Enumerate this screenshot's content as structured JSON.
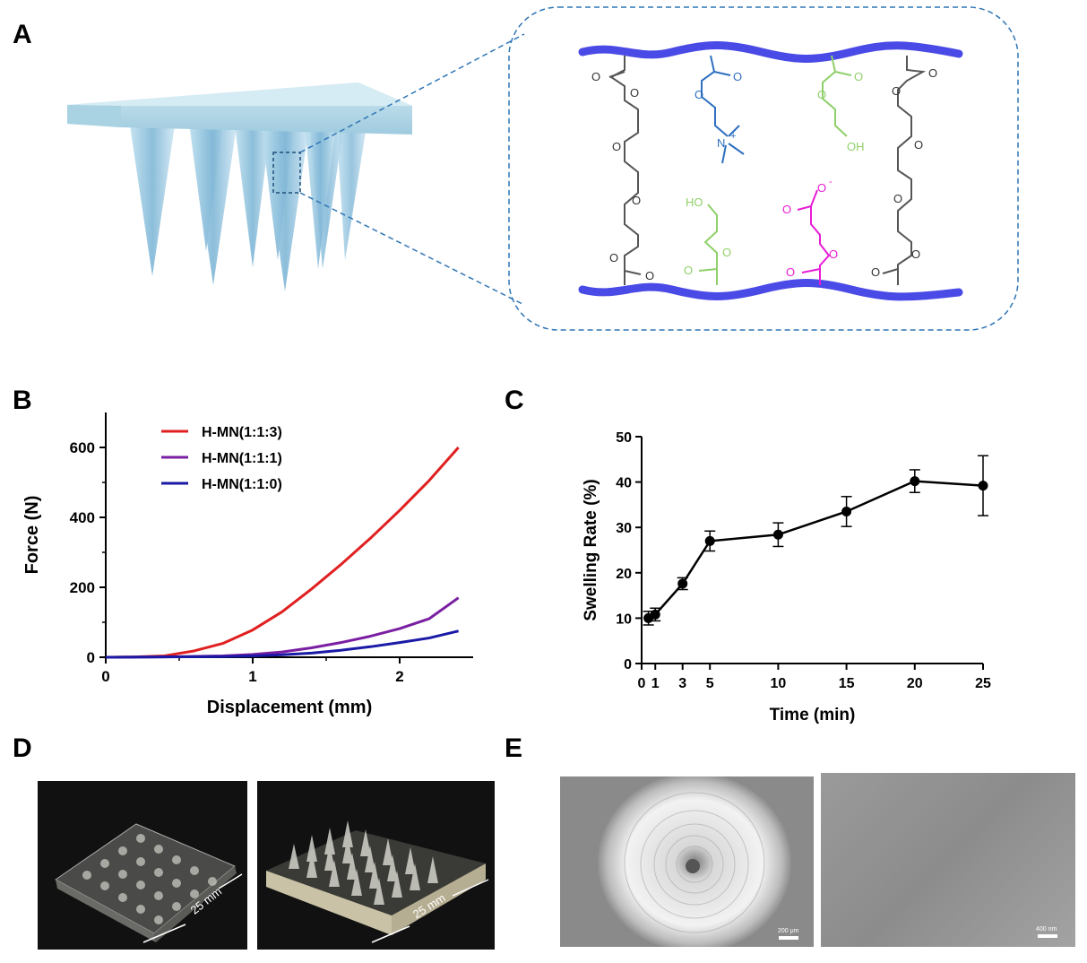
{
  "panels": {
    "a": "A",
    "b": "B",
    "c": "C",
    "d": "D",
    "e": "E"
  },
  "chem": {
    "carbonyl_o": "O",
    "ester_o": "O",
    "nitrogen": "N",
    "plus": "+",
    "oh": "OH",
    "ho": "HO",
    "o_minus": "O",
    "minus": "-"
  },
  "chart_data": [
    {
      "type": "line",
      "xlabel": "Displacement (mm)",
      "ylabel": "Force (N)",
      "xlim": [
        0,
        2.5
      ],
      "ylim": [
        0,
        700
      ],
      "xticks": [
        "0",
        "1",
        "2"
      ],
      "yticks": [
        "0",
        "200",
        "400",
        "600"
      ],
      "legend_position": "top-left",
      "series": [
        {
          "name": "H-MN(1:1:3)",
          "color": "#e02020",
          "x": [
            0,
            0.2,
            0.4,
            0.6,
            0.8,
            1.0,
            1.2,
            1.4,
            1.6,
            1.8,
            2.0,
            2.2,
            2.4
          ],
          "y": [
            0,
            1,
            4,
            18,
            40,
            78,
            130,
            195,
            265,
            340,
            420,
            505,
            600
          ]
        },
        {
          "name": "H-MN(1:1:1)",
          "color": "#7a1fa2",
          "x": [
            0,
            0.4,
            0.8,
            1.0,
            1.2,
            1.4,
            1.6,
            1.8,
            2.0,
            2.2,
            2.4
          ],
          "y": [
            0,
            1,
            4,
            8,
            15,
            27,
            42,
            60,
            82,
            110,
            170
          ]
        },
        {
          "name": "H-MN(1:1:0)",
          "color": "#1a1aa6",
          "x": [
            0,
            0.4,
            0.8,
            1.0,
            1.2,
            1.4,
            1.6,
            1.8,
            2.0,
            2.2,
            2.4
          ],
          "y": [
            0,
            1,
            2,
            4,
            7,
            12,
            20,
            30,
            42,
            55,
            75
          ]
        }
      ]
    },
    {
      "type": "line",
      "xlabel": "Time (min)",
      "ylabel": "Swelling Rate (%)",
      "xlim": [
        0,
        25
      ],
      "ylim": [
        0,
        50
      ],
      "xticks": [
        "0",
        "1",
        "3",
        "5",
        "10",
        "15",
        "20",
        "25"
      ],
      "yticks": [
        "0",
        "10",
        "20",
        "30",
        "40",
        "50"
      ],
      "series": [
        {
          "x": [
            0.5,
            1,
            3,
            5,
            10,
            15,
            20,
            25
          ],
          "y": [
            10.0,
            10.8,
            17.6,
            27.0,
            28.4,
            33.5,
            40.2,
            39.2
          ],
          "err": [
            1.5,
            1.4,
            1.3,
            2.2,
            2.6,
            3.3,
            2.5,
            6.6
          ],
          "color": "#000000"
        }
      ]
    }
  ],
  "photos": {
    "dim_left": "25 mm",
    "dim_right": "25 mm"
  },
  "sem": {
    "scale_left": "200 μm",
    "scale_right": "400 nm"
  }
}
